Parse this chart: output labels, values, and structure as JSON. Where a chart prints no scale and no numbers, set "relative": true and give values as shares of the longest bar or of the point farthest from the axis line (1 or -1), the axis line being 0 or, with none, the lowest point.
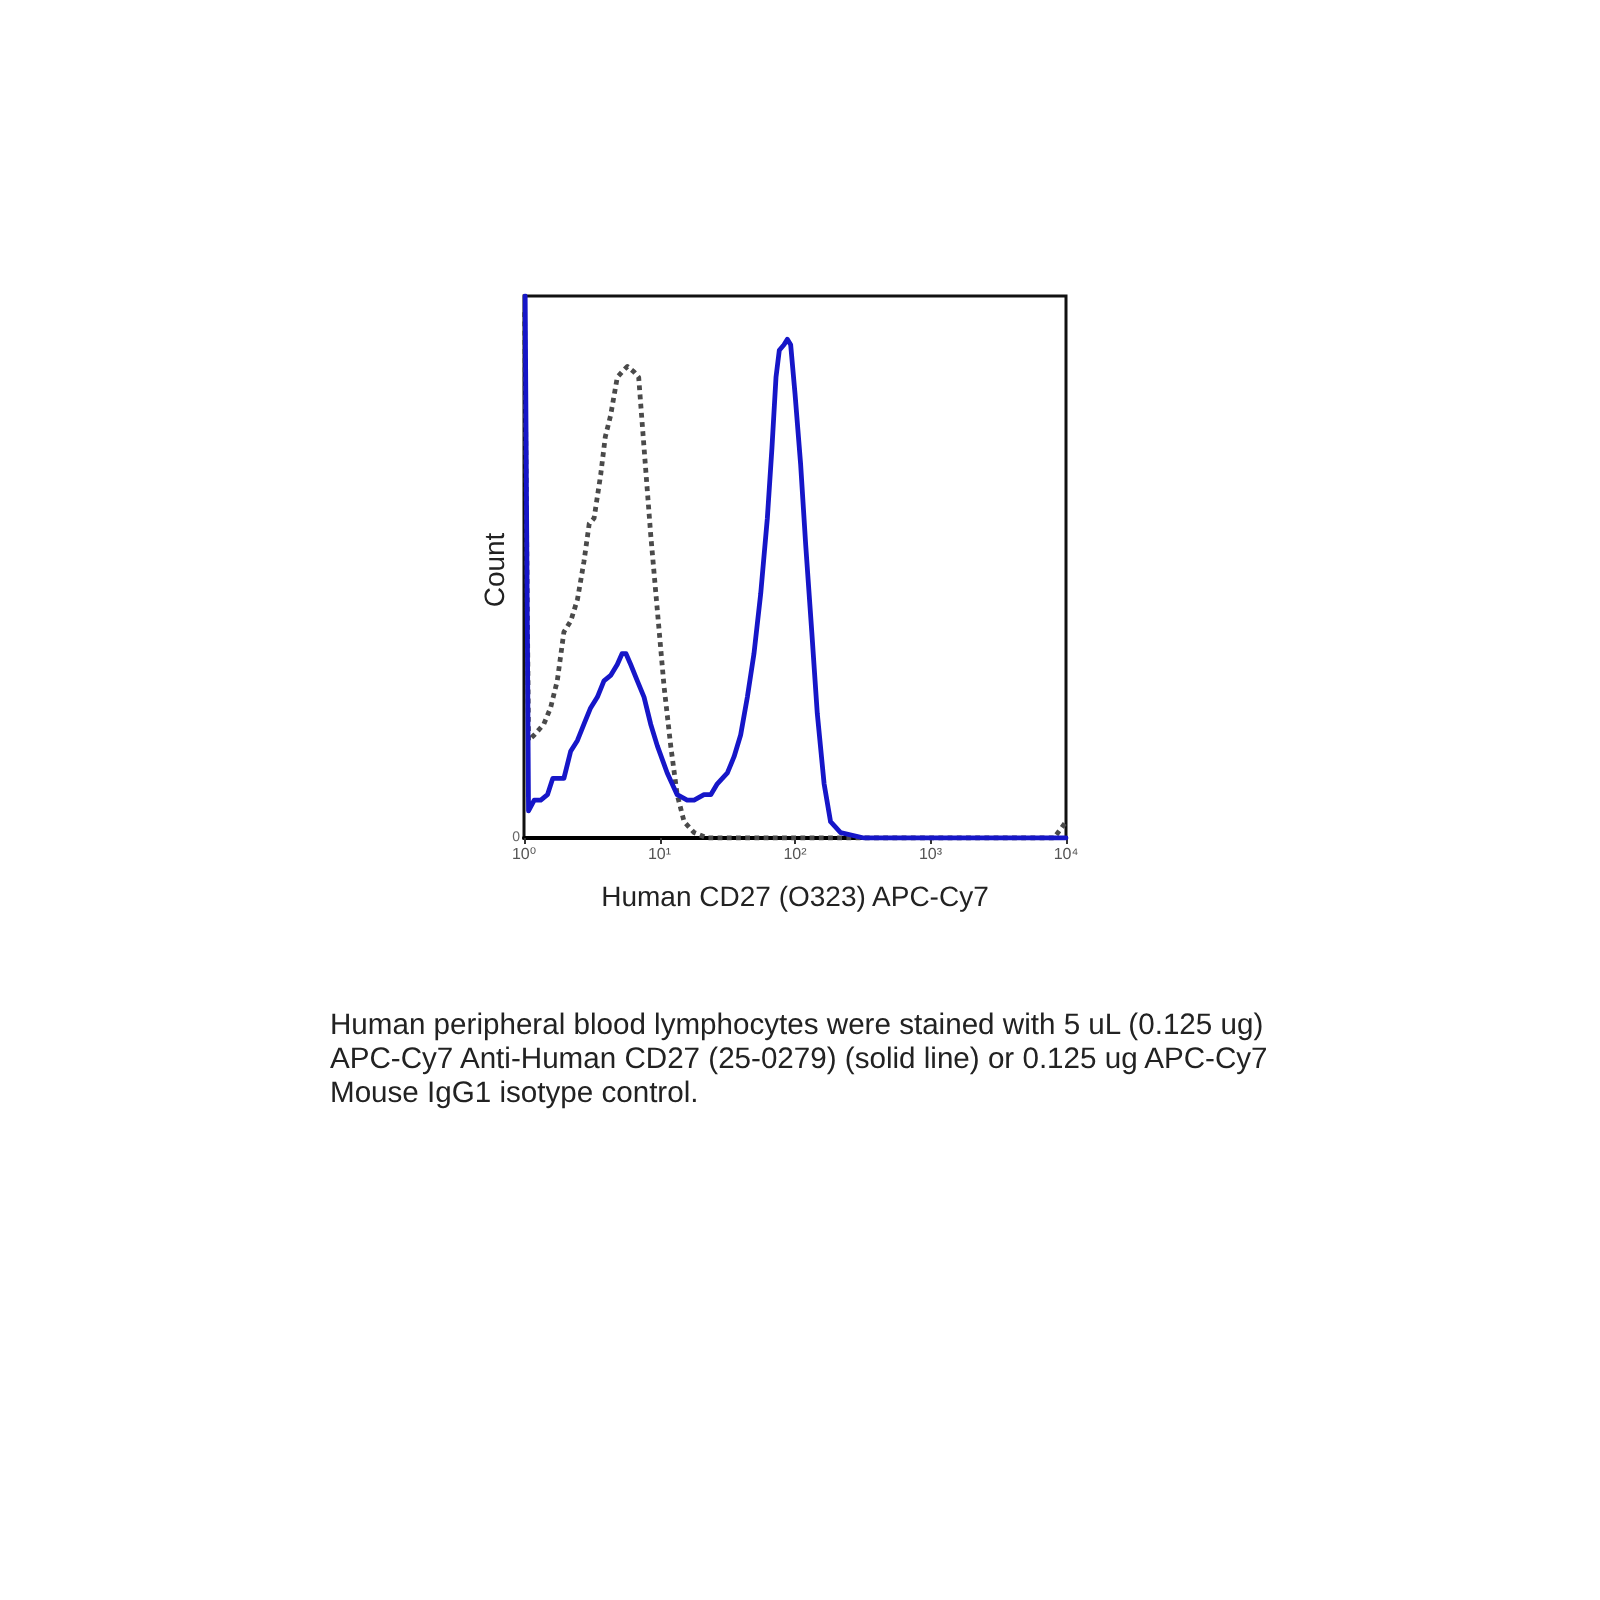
{
  "chart_data": {
    "type": "line",
    "relative": true,
    "xlabel": "Human CD27 (O323) APC-Cy7",
    "ylabel": "Count",
    "log": "x",
    "xlim": [
      1,
      10000
    ],
    "xticks": [
      {
        "value": 1,
        "label": "10⁰"
      },
      {
        "value": 10,
        "label": "10¹"
      },
      {
        "value": 100,
        "label": "10²"
      },
      {
        "value": 1000,
        "label": "10³"
      },
      {
        "value": 10000,
        "label": "10⁴"
      }
    ],
    "marker": "none",
    "annotations": [
      "0",
      "Human peripheral blood lymphocytes were stained with 5 uL (0.125 ug) APC-Cy7 Anti-Human CD27 (25-0279) (solid line) or 0.125 ug APC-Cy7 Mouse IgG1 isotype control."
    ],
    "series": [
      {
        "color": "#4a4a4a",
        "line_style": "dotted",
        "x": [
          1.01,
          1.08,
          1.19,
          1.4,
          1.57,
          1.76,
          1.97,
          2.21,
          2.48,
          2.77,
          3.03,
          3.29,
          3.68,
          3.98,
          4.36,
          4.88,
          5.29,
          5.79,
          6.48,
          7.02,
          7.69,
          8.61,
          9.64,
          10.8,
          12.1,
          13.5,
          15.2,
          18,
          22.5,
          28.3,
          8150,
          10000
        ],
        "values": [
          0.97,
          0.18,
          0.19,
          0.21,
          0.24,
          0.29,
          0.38,
          0.4,
          0.44,
          0.51,
          0.58,
          0.59,
          0.67,
          0.74,
          0.78,
          0.85,
          0.86,
          0.87,
          0.86,
          0.85,
          0.72,
          0.56,
          0.42,
          0.28,
          0.17,
          0.08,
          0.03,
          0.01,
          0,
          0,
          0,
          0.03
        ]
      },
      {
        "color": "#1616c8",
        "line_style": "solid",
        "x": [
          1.02,
          1.08,
          1.19,
          1.33,
          1.49,
          1.63,
          1.82,
          1.97,
          2.21,
          2.48,
          2.77,
          3.1,
          3.48,
          3.89,
          4.36,
          4.88,
          5.29,
          5.66,
          6.13,
          6.86,
          7.69,
          8.61,
          9.64,
          11.4,
          13.5,
          16,
          18,
          21.3,
          23.9,
          26.7,
          31.7,
          35.5,
          39.7,
          44.5,
          49.8,
          55.8,
          62.5,
          67.6,
          72.4,
          76.6,
          82.9,
          87.8,
          92.9,
          100,
          110,
          120,
          133,
          146,
          164,
          183,
          217,
          323,
          10000
        ],
        "values": [
          1,
          0.05,
          0.07,
          0.07,
          0.08,
          0.11,
          0.11,
          0.11,
          0.16,
          0.18,
          0.21,
          0.24,
          0.26,
          0.29,
          0.3,
          0.32,
          0.34,
          0.34,
          0.32,
          0.29,
          0.26,
          0.21,
          0.17,
          0.12,
          0.08,
          0.07,
          0.07,
          0.08,
          0.08,
          0.1,
          0.12,
          0.15,
          0.19,
          0.26,
          0.34,
          0.45,
          0.59,
          0.72,
          0.85,
          0.9,
          0.91,
          0.92,
          0.91,
          0.82,
          0.69,
          0.54,
          0.38,
          0.23,
          0.1,
          0.03,
          0.01,
          0,
          0
        ]
      }
    ]
  }
}
